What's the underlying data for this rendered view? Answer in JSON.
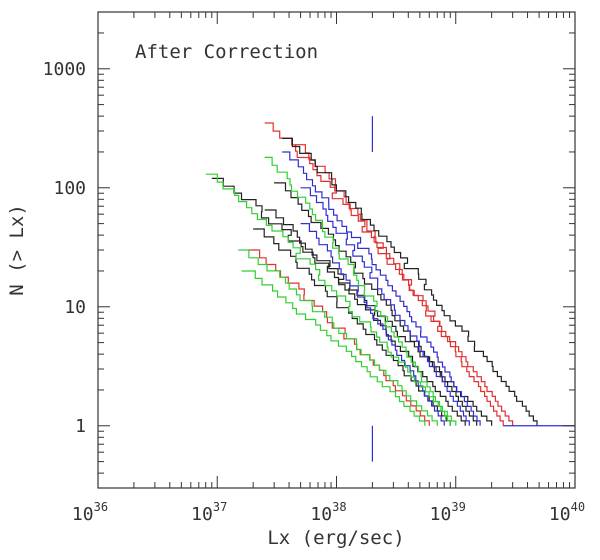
{
  "chart_data": {
    "type": "line",
    "xlabel": "Lx (erg/sec)",
    "ylabel": "N (> Lx)",
    "annotation": "After Correction",
    "x_scale": "log",
    "y_scale": "log",
    "xlim": [
      1e+36,
      1e+40
    ],
    "ylim": [
      0.3,
      3000
    ],
    "x_ticks": [
      {
        "base": "10",
        "exp": "36",
        "value": 1e+36
      },
      {
        "base": "10",
        "exp": "37",
        "value": 1e+37
      },
      {
        "base": "10",
        "exp": "38",
        "value": 1e+38
      },
      {
        "base": "10",
        "exp": "39",
        "value": 1e+39
      },
      {
        "base": "10",
        "exp": "40",
        "value": 1e+40
      }
    ],
    "y_ticks": [
      {
        "label": "1",
        "value": 1
      },
      {
        "label": "10",
        "value": 10
      },
      {
        "label": "100",
        "value": 100
      },
      {
        "label": "1000",
        "value": 1000
      }
    ],
    "vertical_markers": [
      {
        "x": 2e+38,
        "y_range": [
          0.5,
          1.0
        ],
        "color": "#3030d0"
      },
      {
        "x": 2e+38,
        "y_range": [
          200,
          400
        ],
        "color": "#3030d0"
      }
    ],
    "series": [
      {
        "color": "#e03030",
        "lx_range": [
          2.5e+37,
          3e+39
        ],
        "n_max": 350,
        "n_min": 1
      },
      {
        "color": "#e03030",
        "lx_range": [
          4.5e+37,
          2.5e+39
        ],
        "n_max": 230,
        "n_min": 1
      },
      {
        "color": "#e03030",
        "lx_range": [
          1.8e+37,
          6e+38
        ],
        "n_max": 30,
        "n_min": 1
      },
      {
        "color": "#222222",
        "lx_range": [
          3.5e+37,
          4.8e+39
        ],
        "n_max": 260,
        "n_min": 1
      },
      {
        "color": "#222222",
        "lx_range": [
          9e+36,
          2e+39
        ],
        "n_max": 120,
        "n_min": 1
      },
      {
        "color": "#222222",
        "lx_range": [
          3e+37,
          1.5e+39
        ],
        "n_max": 110,
        "n_min": 1
      },
      {
        "color": "#222222",
        "lx_range": [
          2.5e+37,
          1.2e+39
        ],
        "n_max": 65,
        "n_min": 1
      },
      {
        "color": "#222222",
        "lx_range": [
          2e+37,
          9e+38
        ],
        "n_max": 45,
        "n_min": 1
      },
      {
        "color": "#3030d0",
        "lx_range": [
          3.5e+37,
          1.6e+39
        ],
        "n_max": 200,
        "n_min": 1
      },
      {
        "color": "#3030d0",
        "lx_range": [
          5e+37,
          1.3e+39
        ],
        "n_max": 100,
        "n_min": 1
      },
      {
        "color": "#3030d0",
        "lx_range": [
          5e+37,
          8e+38
        ],
        "n_max": 50,
        "n_min": 1
      },
      {
        "color": "#30d030",
        "lx_range": [
          8e+36,
          1e+39
        ],
        "n_max": 130,
        "n_min": 1
      },
      {
        "color": "#30d030",
        "lx_range": [
          2.5e+37,
          9e+38
        ],
        "n_max": 180,
        "n_min": 1
      },
      {
        "color": "#30d030",
        "lx_range": [
          1.5e+37,
          7e+38
        ],
        "n_max": 30,
        "n_min": 1
      },
      {
        "color": "#30d030",
        "lx_range": [
          1.6e+37,
          5.5e+38
        ],
        "n_max": 20,
        "n_min": 1
      }
    ]
  }
}
